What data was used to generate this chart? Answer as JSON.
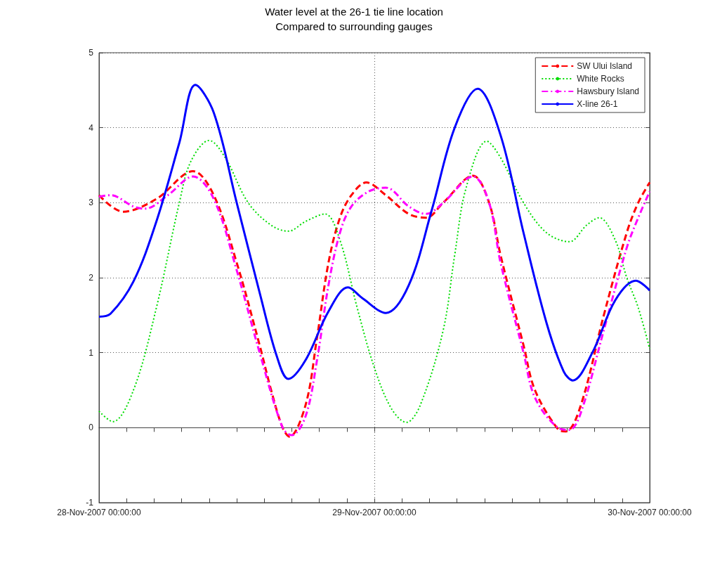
{
  "chart_data": {
    "type": "line",
    "title": "Water level at the 26-1 tie line location",
    "subtitle": "Compared to surrounding gauges",
    "xlim": [
      "2007-11-28T00:00",
      "2007-11-30T00:00"
    ],
    "xticks": [
      {
        "value": "2007-11-28T00:00",
        "label": "28-Nov-2007 00:00:00"
      },
      {
        "value": "2007-11-28T02:24",
        "label": null
      },
      {
        "value": "2007-11-28T04:48",
        "label": null
      },
      {
        "value": "2007-11-28T07:12",
        "label": null
      },
      {
        "value": "2007-11-28T09:36",
        "label": null
      },
      {
        "value": "2007-11-28T12:00",
        "label": null
      },
      {
        "value": "2007-11-28T14:24",
        "label": null
      },
      {
        "value": "2007-11-28T16:48",
        "label": null
      },
      {
        "value": "2007-11-28T19:12",
        "label": null
      },
      {
        "value": "2007-11-28T21:36",
        "label": null
      },
      {
        "value": "2007-11-29T00:00",
        "label": "29-Nov-2007 00:00:00"
      },
      {
        "value": "2007-11-29T02:24",
        "label": null
      },
      {
        "value": "2007-11-29T04:48",
        "label": null
      },
      {
        "value": "2007-11-29T07:12",
        "label": null
      },
      {
        "value": "2007-11-29T09:36",
        "label": null
      },
      {
        "value": "2007-11-29T12:00",
        "label": null
      },
      {
        "value": "2007-11-29T14:24",
        "label": null
      },
      {
        "value": "2007-11-29T16:48",
        "label": null
      },
      {
        "value": "2007-11-29T19:12",
        "label": null
      },
      {
        "value": "2007-11-29T21:36",
        "label": null
      },
      {
        "value": "2007-11-30T00:00",
        "label": "30-Nov-2007 00:00:00"
      }
    ],
    "ylim": [
      -1,
      5
    ],
    "yticks": [
      -1,
      0,
      1,
      2,
      3,
      4,
      5
    ],
    "grid": true,
    "legend": "top right",
    "marker": "none",
    "series": [
      {
        "name": "SW Ului Island",
        "color": "#ff0000",
        "line_style": "dashed",
        "x": [
          "2007-11-28T00:00",
          "2007-11-28T02:06",
          "2007-11-28T05:00",
          "2007-11-28T08:12",
          "2007-11-28T10:00",
          "2007-11-28T12:00",
          "2007-11-28T14:00",
          "2007-11-28T15:00",
          "2007-11-28T16:00",
          "2007-11-28T16:36",
          "2007-11-28T18:00",
          "2007-11-28T19:00",
          "2007-11-28T20:00",
          "2007-11-28T21:00",
          "2007-11-28T22:00",
          "2007-11-28T23:18",
          "2007-11-29T01:00",
          "2007-11-29T03:00",
          "2007-11-29T04:30",
          "2007-11-29T06:00",
          "2007-11-29T08:36",
          "2007-11-29T10:00",
          "2007-11-29T11:00",
          "2007-11-29T13:00",
          "2007-11-29T14:00",
          "2007-11-29T16:00",
          "2007-11-29T16:42",
          "2007-11-29T18:00",
          "2007-11-29T20:00",
          "2007-11-29T22:00",
          "2007-11-29T23:00",
          "2007-11-30T00:00"
        ],
        "values": [
          3.1,
          2.88,
          3.05,
          3.42,
          3.1,
          2.2,
          1.1,
          0.5,
          0.0,
          -0.12,
          0.3,
          1.2,
          2.2,
          2.8,
          3.1,
          3.27,
          3.1,
          2.85,
          2.8,
          3.0,
          3.36,
          3.0,
          2.3,
          1.1,
          0.5,
          -0.02,
          -0.05,
          0.3,
          1.5,
          2.6,
          3.0,
          3.27
        ]
      },
      {
        "name": "White Rocks",
        "color": "#00dd00",
        "line_style": "dotted",
        "x": [
          "2007-11-28T00:00",
          "2007-11-28T01:12",
          "2007-11-28T03:00",
          "2007-11-28T05:00",
          "2007-11-28T07:00",
          "2007-11-28T08:00",
          "2007-11-28T09:36",
          "2007-11-28T11:00",
          "2007-11-28T13:00",
          "2007-11-28T15:00",
          "2007-11-28T16:30",
          "2007-11-28T18:00",
          "2007-11-28T19:42",
          "2007-11-28T21:00",
          "2007-11-28T22:30",
          "2007-11-29T00:00",
          "2007-11-29T01:30",
          "2007-11-29T02:48",
          "2007-11-29T04:00",
          "2007-11-29T06:00",
          "2007-11-29T07:00",
          "2007-11-29T08:00",
          "2007-11-29T09:48",
          "2007-11-29T11:00",
          "2007-11-29T13:00",
          "2007-11-29T15:00",
          "2007-11-29T17:00",
          "2007-11-29T18:30",
          "2007-11-29T19:36",
          "2007-11-29T21:00",
          "2007-11-29T22:00",
          "2007-11-29T23:00",
          "2007-11-30T00:00"
        ],
        "values": [
          0.22,
          0.08,
          0.5,
          1.6,
          3.0,
          3.55,
          3.83,
          3.6,
          3.0,
          2.7,
          2.62,
          2.75,
          2.85,
          2.5,
          1.6,
          0.8,
          0.25,
          0.07,
          0.3,
          1.3,
          2.3,
          3.2,
          3.82,
          3.6,
          3.0,
          2.6,
          2.48,
          2.7,
          2.8,
          2.5,
          2.0,
          1.6,
          1.05
        ]
      },
      {
        "name": "Hawsbury Island",
        "color": "#ff00ff",
        "line_style": "dashdot",
        "x": [
          "2007-11-28T00:00",
          "2007-11-28T01:00",
          "2007-11-28T03:00",
          "2007-11-28T04:00",
          "2007-11-28T06:00",
          "2007-11-28T08:12",
          "2007-11-28T10:00",
          "2007-11-28T12:00",
          "2007-11-28T14:00",
          "2007-11-28T16:00",
          "2007-11-28T16:48",
          "2007-11-28T18:00",
          "2007-11-28T19:00",
          "2007-11-28T20:00",
          "2007-11-28T21:00",
          "2007-11-28T22:00",
          "2007-11-28T23:30",
          "2007-11-29T01:00",
          "2007-11-29T03:00",
          "2007-11-29T04:30",
          "2007-11-29T06:00",
          "2007-11-29T08:36",
          "2007-11-29T10:00",
          "2007-11-29T11:00",
          "2007-11-29T13:00",
          "2007-11-29T14:00",
          "2007-11-29T16:00",
          "2007-11-29T17:00",
          "2007-11-29T18:00",
          "2007-11-29T20:00",
          "2007-11-29T22:00",
          "2007-11-29T23:00",
          "2007-11-30T00:00"
        ],
        "values": [
          3.08,
          3.1,
          2.95,
          2.92,
          3.1,
          3.35,
          3.05,
          2.1,
          1.0,
          0.0,
          -0.1,
          0.15,
          0.9,
          1.9,
          2.6,
          2.95,
          3.15,
          3.2,
          2.95,
          2.85,
          3.0,
          3.35,
          3.0,
          2.2,
          1.0,
          0.4,
          0.0,
          -0.03,
          0.2,
          1.3,
          2.4,
          2.8,
          3.15
        ]
      },
      {
        "name": "X-line 26-1",
        "color": "#0000ff",
        "line_style": "solid",
        "x": [
          "2007-11-28T00:00",
          "2007-11-28T01:00",
          "2007-11-28T03:00",
          "2007-11-28T05:00",
          "2007-11-28T07:00",
          "2007-11-28T08:24",
          "2007-11-28T10:00",
          "2007-11-28T12:00",
          "2007-11-28T14:00",
          "2007-11-28T15:30",
          "2007-11-28T16:30",
          "2007-11-28T18:00",
          "2007-11-28T20:00",
          "2007-11-28T21:42",
          "2007-11-28T23:00",
          "2007-11-29T01:00",
          "2007-11-29T03:00",
          "2007-11-29T05:00",
          "2007-11-29T07:00",
          "2007-11-29T09:00",
          "2007-11-29T11:00",
          "2007-11-29T13:00",
          "2007-11-29T15:00",
          "2007-11-29T16:30",
          "2007-11-29T17:18",
          "2007-11-29T19:00",
          "2007-11-29T21:00",
          "2007-11-29T22:48",
          "2007-11-30T00:00"
        ],
        "values": [
          1.48,
          1.52,
          1.95,
          2.75,
          3.8,
          4.57,
          4.2,
          3.0,
          1.8,
          0.95,
          0.65,
          0.9,
          1.55,
          1.87,
          1.72,
          1.53,
          1.9,
          2.9,
          4.0,
          4.52,
          3.9,
          2.6,
          1.4,
          0.75,
          0.63,
          1.0,
          1.7,
          1.96,
          1.83
        ]
      }
    ]
  }
}
